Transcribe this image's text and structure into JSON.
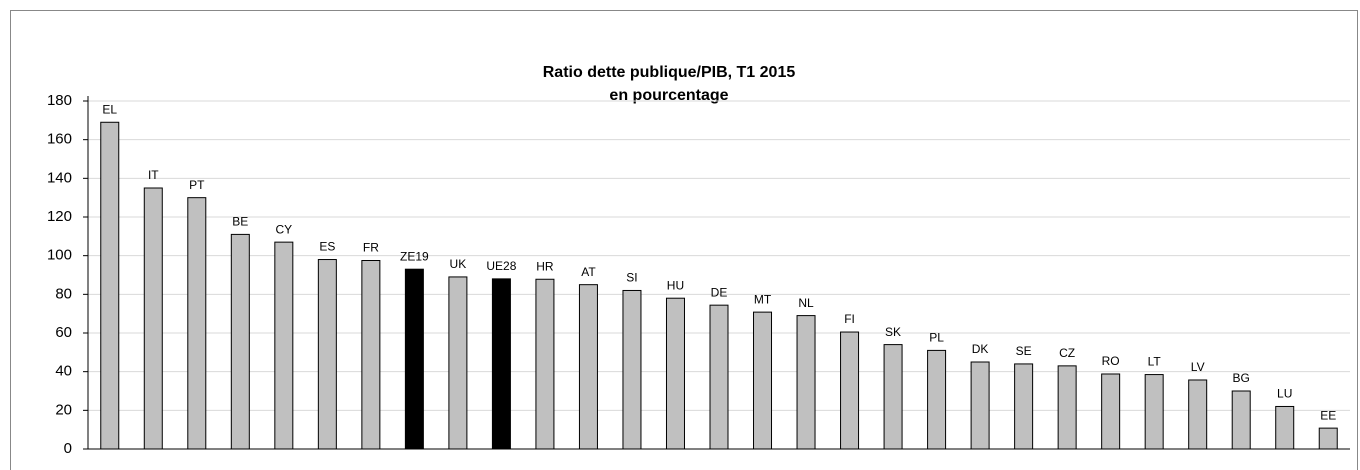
{
  "chart_data": {
    "type": "bar",
    "title": "Ratio dette publique/PIB, T1 2015",
    "subtitle": "en pourcentage",
    "categories": [
      "EL",
      "IT",
      "PT",
      "BE",
      "CY",
      "ES",
      "FR",
      "ZE19",
      "UK",
      "UE28",
      "HR",
      "AT",
      "SI",
      "HU",
      "DE",
      "MT",
      "NL",
      "FI",
      "SK",
      "PL",
      "DK",
      "SE",
      "CZ",
      "RO",
      "LT",
      "LV",
      "BG",
      "LU",
      "EE"
    ],
    "values": [
      169,
      135,
      130,
      111,
      107,
      98,
      97.5,
      93,
      89,
      88,
      87.8,
      85,
      82,
      78,
      74.4,
      70.8,
      69,
      60.5,
      54,
      51,
      45,
      44,
      43,
      38.8,
      38.5,
      35.7,
      30,
      22,
      10.8
    ],
    "colors": [
      "#c0c0c0",
      "#c0c0c0",
      "#c0c0c0",
      "#c0c0c0",
      "#c0c0c0",
      "#c0c0c0",
      "#c0c0c0",
      "#000000",
      "#c0c0c0",
      "#000000",
      "#c0c0c0",
      "#c0c0c0",
      "#c0c0c0",
      "#c0c0c0",
      "#c0c0c0",
      "#c0c0c0",
      "#c0c0c0",
      "#c0c0c0",
      "#c0c0c0",
      "#c0c0c0",
      "#c0c0c0",
      "#c0c0c0",
      "#c0c0c0",
      "#c0c0c0",
      "#c0c0c0",
      "#c0c0c0",
      "#c0c0c0",
      "#c0c0c0",
      "#c0c0c0"
    ],
    "ylim": [
      0,
      180
    ],
    "yticks": [
      0,
      20,
      40,
      60,
      80,
      100,
      120,
      140,
      160,
      180
    ],
    "grid": true
  }
}
